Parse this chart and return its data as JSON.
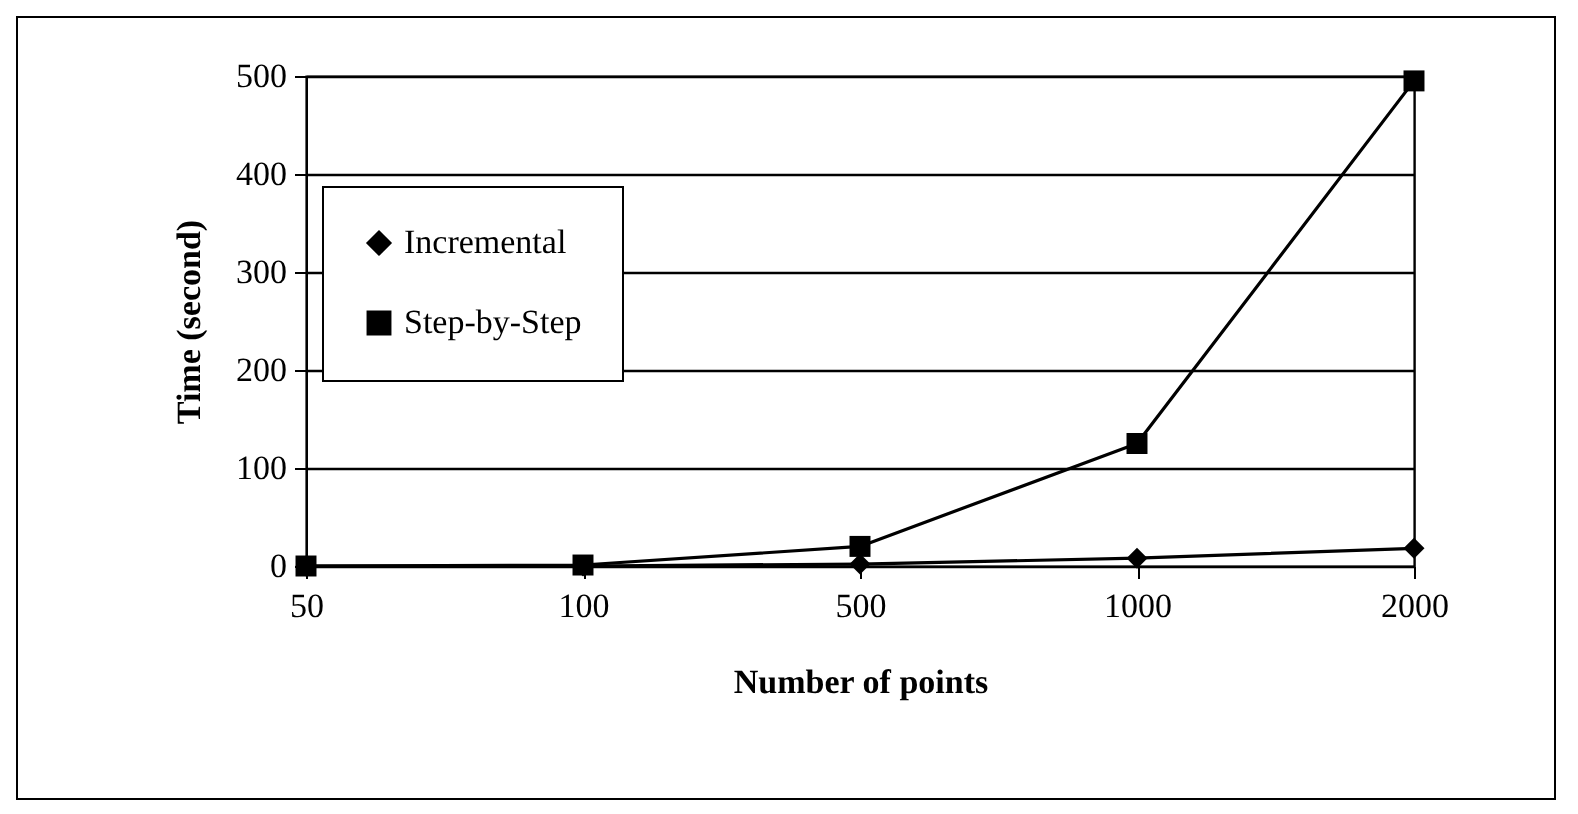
{
  "chart_data": {
    "type": "line",
    "xlabel": "Number of points",
    "ylabel": "Time (second)",
    "categories": [
      "50",
      "100",
      "500",
      "1000",
      "2000"
    ],
    "series": [
      {
        "name": "Incremental",
        "color": "#000000",
        "marker": "diamond",
        "values": [
          0,
          0,
          2,
          8,
          18
        ]
      },
      {
        "name": "Step-by-Step",
        "color": "#000000",
        "marker": "square",
        "values": [
          0,
          1,
          20,
          125,
          495
        ]
      }
    ],
    "ylim": [
      0,
      500
    ],
    "yticks": [
      0,
      100,
      200,
      300,
      400,
      500
    ],
    "grid": "y",
    "legend": "top left",
    "line_style": "solid"
  }
}
